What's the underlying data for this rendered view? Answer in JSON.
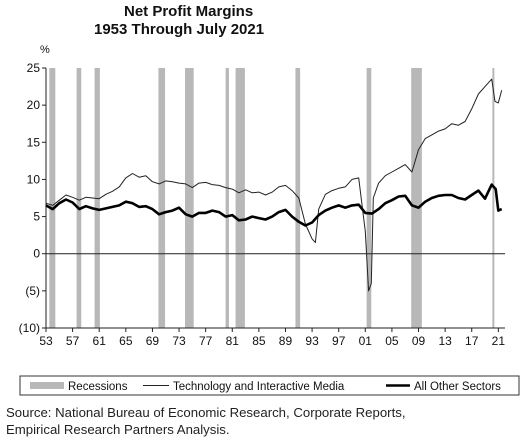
{
  "chart_data": {
    "type": "line",
    "title": "Net Profit Margins",
    "subtitle": "1953 Through July 2021",
    "ylabel": "%",
    "xlabel": "",
    "ylim": [
      -10,
      25
    ],
    "xlim": [
      1953,
      2022
    ],
    "y_ticks": [
      "25",
      "20",
      "15",
      "10",
      "5",
      "0",
      "(5)",
      "(10)"
    ],
    "y_tick_values": [
      25,
      20,
      15,
      10,
      5,
      0,
      -5,
      -10
    ],
    "x_ticks": [
      "53",
      "57",
      "61",
      "65",
      "69",
      "73",
      "77",
      "81",
      "85",
      "89",
      "93",
      "97",
      "01",
      "05",
      "09",
      "13",
      "17",
      "21"
    ],
    "x_tick_values": [
      1953,
      1957,
      1961,
      1965,
      1969,
      1973,
      1977,
      1981,
      1985,
      1989,
      1993,
      1997,
      2001,
      2005,
      2009,
      2013,
      2017,
      2021
    ],
    "grid": false,
    "legend_position": "bottom",
    "recessions": [
      {
        "start": 1953.5,
        "end": 1954.4
      },
      {
        "start": 1957.6,
        "end": 1958.3
      },
      {
        "start": 1960.3,
        "end": 1961.1
      },
      {
        "start": 1969.9,
        "end": 1970.9
      },
      {
        "start": 1973.9,
        "end": 1975.2
      },
      {
        "start": 1980.0,
        "end": 1980.5
      },
      {
        "start": 1981.5,
        "end": 1982.9
      },
      {
        "start": 1990.5,
        "end": 1991.2
      },
      {
        "start": 2001.2,
        "end": 2001.9
      },
      {
        "start": 2007.9,
        "end": 2009.5
      },
      {
        "start": 2020.1,
        "end": 2020.4
      }
    ],
    "series": [
      {
        "name": "Technology and Interactive Media",
        "x": [
          1953,
          1954,
          1955,
          1956,
          1957,
          1958,
          1959,
          1960,
          1961,
          1962,
          1963,
          1964,
          1965,
          1966,
          1967,
          1968,
          1969,
          1970,
          1971,
          1972,
          1973,
          1974,
          1975,
          1976,
          1977,
          1978,
          1979,
          1980,
          1981,
          1982,
          1983,
          1984,
          1985,
          1986,
          1987,
          1988,
          1989,
          1990,
          1991,
          1992,
          1993,
          1993.5,
          1994,
          1995,
          1996,
          1997,
          1998,
          1999,
          2000,
          2001,
          2001.5,
          2001.9,
          2002.2,
          2003,
          2004,
          2005,
          2006,
          2007,
          2008,
          2009,
          2010,
          2011,
          2012,
          2013,
          2014,
          2015,
          2016,
          2017,
          2018,
          2019,
          2020,
          2020.5,
          2021,
          2021.5
        ],
        "values": [
          6.8,
          6.5,
          7.2,
          7.9,
          7.6,
          7.2,
          7.6,
          7.5,
          7.4,
          8.0,
          8.4,
          9.0,
          10.2,
          10.8,
          10.3,
          10.5,
          9.7,
          9.4,
          9.8,
          9.7,
          9.5,
          9.4,
          8.9,
          9.5,
          9.6,
          9.3,
          9.2,
          8.9,
          8.7,
          8.2,
          8.6,
          8.2,
          8.3,
          7.9,
          8.3,
          9.0,
          9.2,
          8.5,
          7.5,
          4.0,
          2.0,
          1.5,
          6.0,
          8.0,
          8.5,
          8.8,
          9.0,
          10.0,
          10.2,
          3.0,
          -5.0,
          -4.0,
          7.5,
          9.5,
          10.5,
          11.0,
          11.5,
          12.0,
          11.0,
          14.0,
          15.5,
          16.0,
          16.5,
          16.8,
          17.5,
          17.3,
          17.8,
          19.5,
          21.5,
          22.5,
          23.5,
          20.5,
          20.3,
          22.0
        ]
      },
      {
        "name": "All Other Sectors",
        "x": [
          1953,
          1954,
          1955,
          1956,
          1957,
          1958,
          1959,
          1960,
          1961,
          1962,
          1963,
          1964,
          1965,
          1966,
          1967,
          1968,
          1969,
          1970,
          1971,
          1972,
          1973,
          1974,
          1975,
          1976,
          1977,
          1978,
          1979,
          1980,
          1981,
          1982,
          1983,
          1984,
          1985,
          1986,
          1987,
          1988,
          1989,
          1990,
          1991,
          1992,
          1993,
          1994,
          1995,
          1996,
          1997,
          1998,
          1999,
          2000,
          2001,
          2002,
          2003,
          2004,
          2005,
          2006,
          2007,
          2008,
          2009,
          2010,
          2011,
          2012,
          2013,
          2014,
          2015,
          2016,
          2017,
          2018,
          2019,
          2020,
          2020.6,
          2021,
          2021.5
        ],
        "values": [
          6.5,
          6.0,
          6.8,
          7.3,
          6.9,
          6.0,
          6.4,
          6.1,
          5.9,
          6.1,
          6.3,
          6.5,
          7.0,
          6.8,
          6.3,
          6.4,
          6.0,
          5.3,
          5.6,
          5.8,
          6.2,
          5.3,
          5.0,
          5.5,
          5.5,
          5.8,
          5.6,
          5.0,
          5.2,
          4.5,
          4.6,
          5.0,
          4.8,
          4.6,
          5.0,
          5.6,
          5.9,
          5.0,
          4.3,
          3.8,
          4.2,
          5.2,
          5.8,
          6.2,
          6.5,
          6.2,
          6.5,
          6.6,
          5.5,
          5.4,
          6.0,
          6.8,
          7.2,
          7.7,
          7.8,
          6.5,
          6.2,
          7.0,
          7.5,
          7.8,
          7.9,
          7.9,
          7.5,
          7.3,
          7.9,
          8.5,
          7.4,
          9.3,
          8.7,
          5.8,
          6.0
        ]
      }
    ],
    "legend": {
      "recessions_label": "Recessions",
      "tech_label": "Technology and Interactive Media",
      "other_label": "All Other Sectors"
    }
  },
  "source_line1": "Source: National Bureau of Economic Research, Corporate Reports,",
  "source_line2": "Empirical Research Partners Analysis.",
  "colors": {
    "recession_bar": "#b8b8b8",
    "tech_line": "#222222",
    "other_line": "#000000",
    "axis": "#222222"
  }
}
